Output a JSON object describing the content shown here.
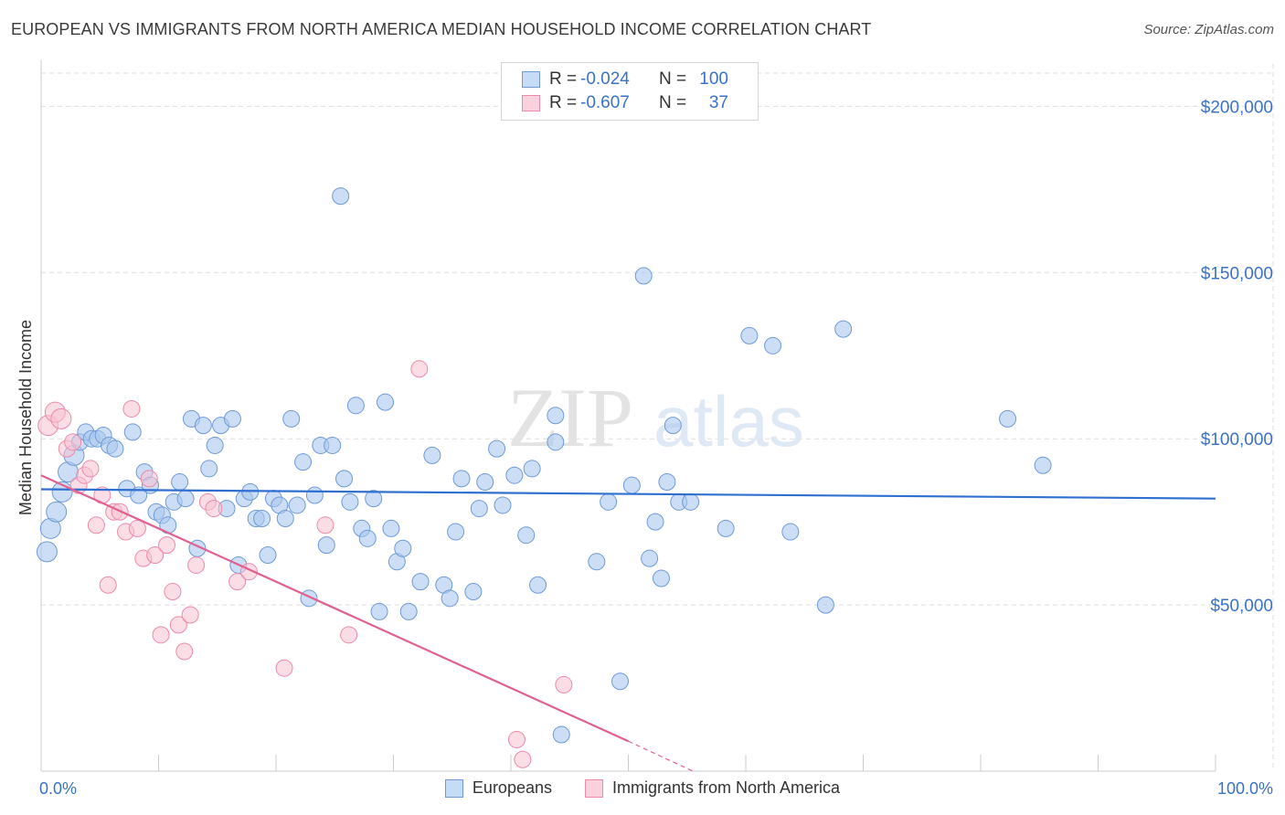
{
  "title": "EUROPEAN VS IMMIGRANTS FROM NORTH AMERICA MEDIAN HOUSEHOLD INCOME CORRELATION CHART",
  "source": "Source: ZipAtlas.com",
  "colors": {
    "blue_fill": "#aac8ee",
    "blue_stroke": "#6e9ad8",
    "blue_line": "#2e6fd0",
    "pink_fill": "#f7c1d2",
    "pink_stroke": "#ec8aa8",
    "pink_line": "#e06090",
    "grid": "#dddddd",
    "tick_text": "#3a72c8",
    "watermark": "#e6e6e6"
  },
  "legend": {
    "rows": [
      {
        "r_label": "R =",
        "r_value": "-0.024",
        "n_label": "N =",
        "n_value": "100"
      },
      {
        "r_label": "R =",
        "r_value": "-0.607",
        "n_label": "N =",
        "n_value": "37"
      }
    ]
  },
  "bottom_legend": {
    "europeans": "Europeans",
    "immigrants": "Immigrants from North America"
  },
  "watermark": {
    "zip": "ZIP",
    "atlas": "atlas"
  },
  "chart_data": {
    "type": "scatter",
    "title": "EUROPEAN VS IMMIGRANTS FROM NORTH AMERICA MEDIAN HOUSEHOLD INCOME CORRELATION CHART",
    "xlabel": "",
    "ylabel": "Median Household Income",
    "xlim": [
      0,
      100
    ],
    "ylim": [
      0,
      210000
    ],
    "x_tick_labels": [
      "0.0%",
      "100.0%"
    ],
    "y_ticks": [
      50000,
      100000,
      150000,
      200000
    ],
    "y_tick_labels": [
      "$50,000",
      "$100,000",
      "$150,000",
      "$200,000"
    ],
    "grid": true,
    "series": [
      {
        "name": "Europeans",
        "points": [
          [
            0.5,
            66000
          ],
          [
            0.8,
            73000
          ],
          [
            1.3,
            78000
          ],
          [
            1.8,
            84000
          ],
          [
            2.3,
            90000
          ],
          [
            2.8,
            95000
          ],
          [
            3.3,
            99000
          ],
          [
            3.8,
            102000
          ],
          [
            4.3,
            100000
          ],
          [
            4.8,
            100000
          ],
          [
            5.3,
            101000
          ],
          [
            5.8,
            98000
          ],
          [
            6.3,
            97000
          ],
          [
            7.3,
            85000
          ],
          [
            7.8,
            102000
          ],
          [
            8.3,
            83000
          ],
          [
            8.8,
            90000
          ],
          [
            9.3,
            86000
          ],
          [
            9.8,
            78000
          ],
          [
            10.3,
            77000
          ],
          [
            10.8,
            74000
          ],
          [
            11.3,
            81000
          ],
          [
            11.8,
            87000
          ],
          [
            12.3,
            82000
          ],
          [
            12.8,
            106000
          ],
          [
            13.3,
            67000
          ],
          [
            13.8,
            104000
          ],
          [
            14.3,
            91000
          ],
          [
            14.8,
            98000
          ],
          [
            15.3,
            104000
          ],
          [
            15.8,
            79000
          ],
          [
            16.3,
            106000
          ],
          [
            16.8,
            62000
          ],
          [
            17.3,
            82000
          ],
          [
            17.8,
            84000
          ],
          [
            18.3,
            76000
          ],
          [
            18.8,
            76000
          ],
          [
            19.3,
            65000
          ],
          [
            19.8,
            82000
          ],
          [
            20.3,
            80000
          ],
          [
            20.8,
            76000
          ],
          [
            21.3,
            106000
          ],
          [
            21.8,
            80000
          ],
          [
            22.3,
            93000
          ],
          [
            22.8,
            52000
          ],
          [
            23.3,
            83000
          ],
          [
            23.8,
            98000
          ],
          [
            24.3,
            68000
          ],
          [
            24.8,
            98000
          ],
          [
            25.5,
            173000
          ],
          [
            25.8,
            88000
          ],
          [
            26.3,
            81000
          ],
          [
            26.8,
            110000
          ],
          [
            27.3,
            73000
          ],
          [
            27.8,
            70000
          ],
          [
            28.3,
            82000
          ],
          [
            28.8,
            48000
          ],
          [
            29.3,
            111000
          ],
          [
            29.8,
            73000
          ],
          [
            30.3,
            63000
          ],
          [
            30.8,
            67000
          ],
          [
            31.3,
            48000
          ],
          [
            32.3,
            57000
          ],
          [
            33.3,
            95000
          ],
          [
            34.3,
            56000
          ],
          [
            34.8,
            52000
          ],
          [
            35.3,
            72000
          ],
          [
            35.8,
            88000
          ],
          [
            36.8,
            54000
          ],
          [
            37.3,
            79000
          ],
          [
            37.8,
            87000
          ],
          [
            38.8,
            97000
          ],
          [
            39.3,
            80000
          ],
          [
            40.3,
            89000
          ],
          [
            41.3,
            71000
          ],
          [
            41.8,
            91000
          ],
          [
            42.3,
            56000
          ],
          [
            43.8,
            107000
          ],
          [
            43.8,
            99000
          ],
          [
            44.3,
            11000
          ],
          [
            47.3,
            63000
          ],
          [
            48.3,
            81000
          ],
          [
            49.3,
            27000
          ],
          [
            50.3,
            86000
          ],
          [
            51.3,
            149000
          ],
          [
            51.8,
            64000
          ],
          [
            52.3,
            75000
          ],
          [
            52.8,
            58000
          ],
          [
            53.3,
            87000
          ],
          [
            53.8,
            104000
          ],
          [
            54.3,
            81000
          ],
          [
            55.3,
            81000
          ],
          [
            58.3,
            73000
          ],
          [
            60.3,
            131000
          ],
          [
            62.3,
            128000
          ],
          [
            63.8,
            72000
          ],
          [
            66.8,
            50000
          ],
          [
            68.3,
            133000
          ],
          [
            82.3,
            106000
          ],
          [
            85.3,
            92000
          ]
        ]
      },
      {
        "name": "Immigrants from North America",
        "points": [
          [
            0.6,
            104000
          ],
          [
            1.2,
            108000
          ],
          [
            1.7,
            106000
          ],
          [
            2.2,
            97000
          ],
          [
            2.7,
            99000
          ],
          [
            3.2,
            86000
          ],
          [
            3.7,
            89000
          ],
          [
            4.2,
            91000
          ],
          [
            4.7,
            74000
          ],
          [
            5.2,
            83000
          ],
          [
            5.7,
            56000
          ],
          [
            6.2,
            78000
          ],
          [
            6.7,
            78000
          ],
          [
            7.2,
            72000
          ],
          [
            7.7,
            109000
          ],
          [
            8.2,
            73000
          ],
          [
            8.7,
            64000
          ],
          [
            9.2,
            88000
          ],
          [
            9.7,
            65000
          ],
          [
            10.2,
            41000
          ],
          [
            10.7,
            68000
          ],
          [
            11.2,
            54000
          ],
          [
            11.7,
            44000
          ],
          [
            12.2,
            36000
          ],
          [
            12.7,
            47000
          ],
          [
            13.2,
            62000
          ],
          [
            14.2,
            81000
          ],
          [
            14.7,
            79000
          ],
          [
            16.7,
            57000
          ],
          [
            17.7,
            60000
          ],
          [
            20.7,
            31000
          ],
          [
            24.2,
            74000
          ],
          [
            26.2,
            41000
          ],
          [
            32.2,
            121000
          ],
          [
            40.5,
            9500
          ],
          [
            41.0,
            3500
          ],
          [
            44.5,
            26000
          ]
        ]
      }
    ],
    "trend_lines": [
      {
        "series": "Europeans",
        "x": [
          0,
          100
        ],
        "y": [
          84800,
          82000
        ]
      },
      {
        "series": "Immigrants from North America",
        "x": [
          0,
          50
        ],
        "y": [
          89000,
          9000
        ],
        "dashed_extension_x": [
          50,
          55.5
        ],
        "dashed_extension_y": [
          9000,
          0
        ]
      }
    ]
  }
}
